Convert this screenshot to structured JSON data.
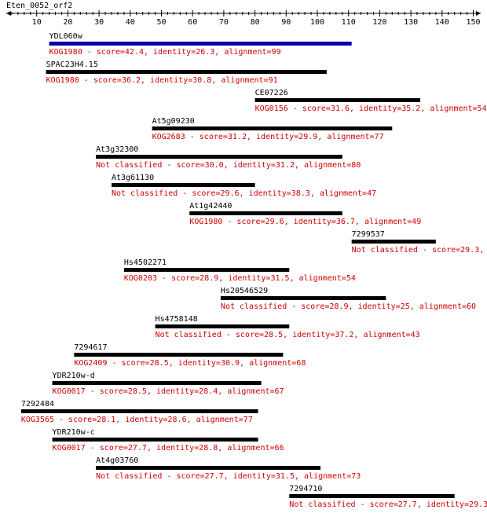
{
  "query_name": "Eten_0052_orf2",
  "axis": {
    "min": 0,
    "max": 150,
    "tick_labels": [
      10,
      20,
      30,
      40,
      50,
      60,
      70,
      80,
      90,
      100,
      110,
      120,
      130,
      140,
      150
    ]
  },
  "colors": {
    "axis": "#000000",
    "bar": "#000000",
    "best_hit_bar": "#0000aa",
    "hit_text": "#cc0000"
  },
  "hits": [
    {
      "name": "YDL060w",
      "start": 14,
      "end": 111,
      "label": "KOG1980 - score=42.4, identity=26.3, alignment=99",
      "highlight": true
    },
    {
      "name": "SPAC23H4.15",
      "start": 13,
      "end": 103,
      "label": "KOG1980 - score=36.2, identity=30.8, alignment=91"
    },
    {
      "name": "CE07226",
      "start": 80,
      "end": 133,
      "label": "KOG0156 - score=31.6, identity=35.2, alignment=54"
    },
    {
      "name": "At5g09230",
      "start": 47,
      "end": 124,
      "label": "KOG2683 - score=31.2, identity=29.9, alignment=77"
    },
    {
      "name": "At3g32300",
      "start": 29,
      "end": 108,
      "label": "Not classified - score=30.0, identity=31.2, alignment=80"
    },
    {
      "name": "At3g61130",
      "start": 34,
      "end": 80,
      "label": "Not classified - score=29.6, identity=38.3, alignment=47"
    },
    {
      "name": "At1g42440",
      "start": 59,
      "end": 108,
      "label": "KOG1980 - score=29.6, identity=36.7, alignment=49"
    },
    {
      "name": "7299537",
      "start": 111,
      "end": 138,
      "label": "Not classified - score=29.3,"
    },
    {
      "name": "Hs4502271",
      "start": 38,
      "end": 91,
      "label": "KOG0203 - score=28.9, identity=31.5, alignment=54"
    },
    {
      "name": "Hs20546529",
      "start": 69,
      "end": 122,
      "label": "Not classified - score=28.9, identity=25, alignment=60"
    },
    {
      "name": "Hs4758148",
      "start": 48,
      "end": 91,
      "label": "Not classified - score=28.5, identity=37.2, alignment=43"
    },
    {
      "name": "7294617",
      "start": 22,
      "end": 89,
      "label": "KOG2409 - score=28.5, identity=30.9, alignment=68"
    },
    {
      "name": "YDR210w-d",
      "start": 15,
      "end": 82,
      "label": "KOG0017 - score=28.5, identity=28.4, alignment=67"
    },
    {
      "name": "7292484",
      "start": 5,
      "end": 81,
      "label": "KOG3565 - score=28.1, identity=28.6, alignment=77"
    },
    {
      "name": "YDR210w-c",
      "start": 15,
      "end": 81,
      "label": "KOG0017 - score=27.7, identity=28.8, alignment=66"
    },
    {
      "name": "At4g03760",
      "start": 29,
      "end": 101,
      "label": "Not classified - score=27.7, identity=31.5, alignment=73"
    },
    {
      "name": "7294710",
      "start": 91,
      "end": 144,
      "label": "Not classified - score=27.7, identity=29.3,"
    }
  ]
}
